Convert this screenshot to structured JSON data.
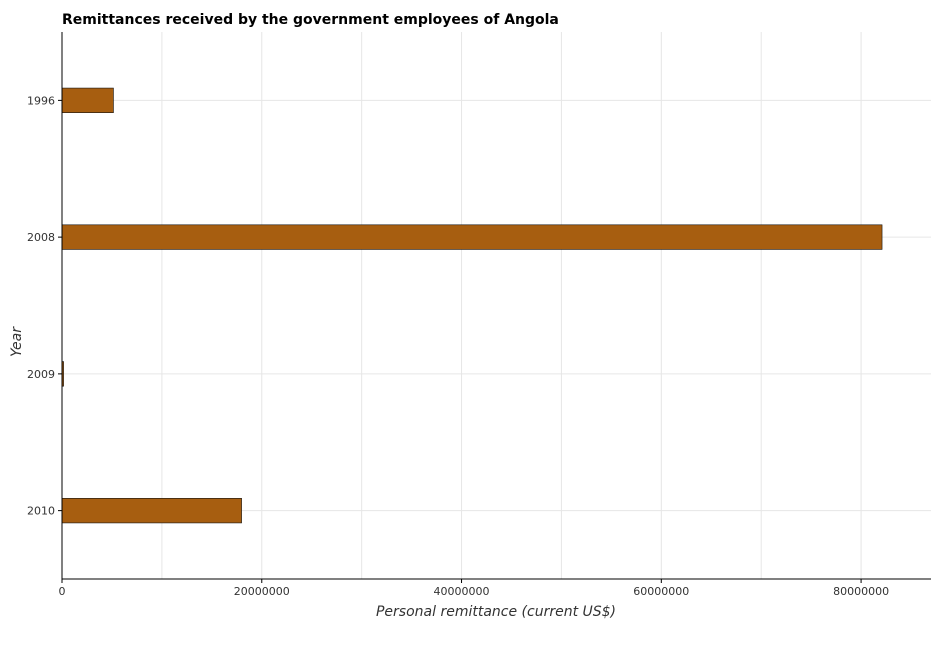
{
  "chart_data": {
    "type": "bar",
    "orientation": "horizontal",
    "title": "Remittances received by the government employees of Angola",
    "xlabel": "Personal remittance (current US$)",
    "ylabel": "Year",
    "categories": [
      "1996",
      "2008",
      "2009",
      "2010"
    ],
    "values": [
      5150000,
      82100000,
      160000,
      17980000
    ],
    "xlim": [
      0,
      87000000
    ],
    "xticks": [
      0,
      20000000,
      40000000,
      60000000,
      80000000
    ],
    "xtick_labels": [
      "0",
      "20000000",
      "40000000",
      "60000000",
      "80000000"
    ],
    "grid": true,
    "bar_color": "#a75e10"
  }
}
